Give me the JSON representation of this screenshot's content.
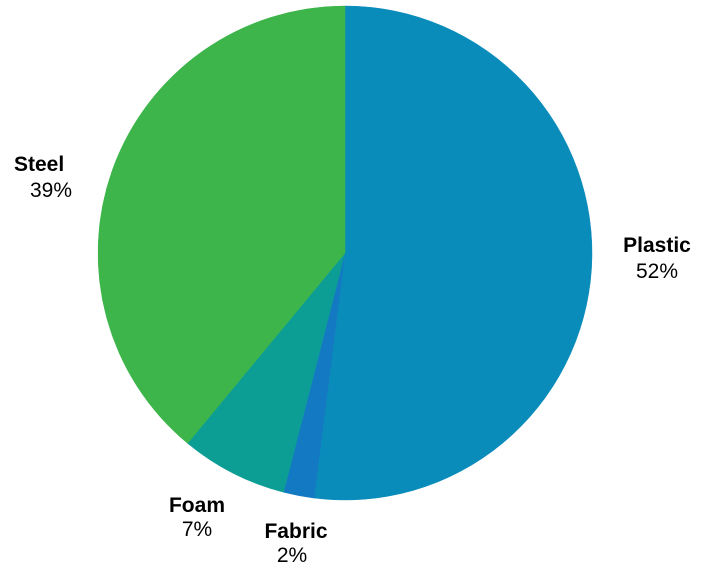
{
  "chart_data": {
    "type": "pie",
    "start_angle_deg": 0,
    "direction": "clockwise",
    "slices": [
      {
        "label": "Plastic",
        "value": 52,
        "value_label": "52%",
        "color": "#0a8cbb"
      },
      {
        "label": "Fabric",
        "value": 2,
        "value_label": "2%",
        "color": "#1479c3"
      },
      {
        "label": "Foam",
        "value": 7,
        "value_label": "7%",
        "color": "#0c9e95"
      },
      {
        "label": "Steel",
        "value": 39,
        "value_label": "39%",
        "color": "#3db54a"
      }
    ]
  }
}
